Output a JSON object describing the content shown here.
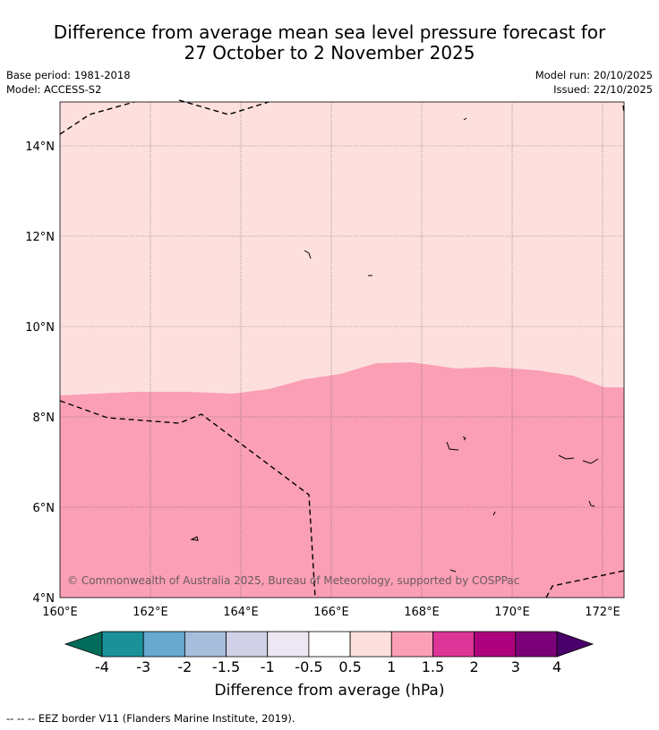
{
  "header": {
    "title_line1": "Difference from average mean sea level pressure forecast for",
    "title_line2": "27 October to 2 November 2025",
    "base_period": "Base period: 1981-2018",
    "model": "Model: ACCESS-S2",
    "model_run": "Model run: 20/10/2025",
    "issued": "Issued: 22/10/2025"
  },
  "map": {
    "lat_labels": [
      "14°N",
      "12°N",
      "10°N",
      "8°N",
      "6°N",
      "4°N"
    ],
    "lat_values": [
      14,
      12,
      10,
      8,
      6,
      4
    ],
    "lon_labels": [
      "160°E",
      "162°E",
      "164°E",
      "166°E",
      "168°E",
      "170°E",
      "172°E"
    ],
    "lon_values": [
      160,
      162,
      164,
      166,
      168,
      170,
      172
    ],
    "copyright": "© Commonwealth of Australia 2025, Bureau of Meteorology, supported by COSPPac",
    "colors": {
      "north_band": "#fde0dd",
      "south_band": "#fa9fb5"
    }
  },
  "colorbar": {
    "title": "Difference from average (hPa)",
    "ticks": [
      "-4",
      "-3",
      "-2",
      "-1.5",
      "-1",
      "-0.5",
      "0.5",
      "1",
      "1.5",
      "2",
      "3",
      "4"
    ],
    "colors": [
      "#1a9099",
      "#67a9cf",
      "#a6bddb",
      "#d0d1e6",
      "#ece7f2",
      "#ffffff",
      "#fde0dd",
      "#fa9fb5",
      "#dd3497",
      "#ae017e",
      "#7a0177"
    ],
    "under_color": "#016c59",
    "over_color": "#49006a"
  },
  "footer": {
    "eez_legend": "--  --  -- EEZ border V11 (Flanders Marine Institute, 2019)."
  }
}
